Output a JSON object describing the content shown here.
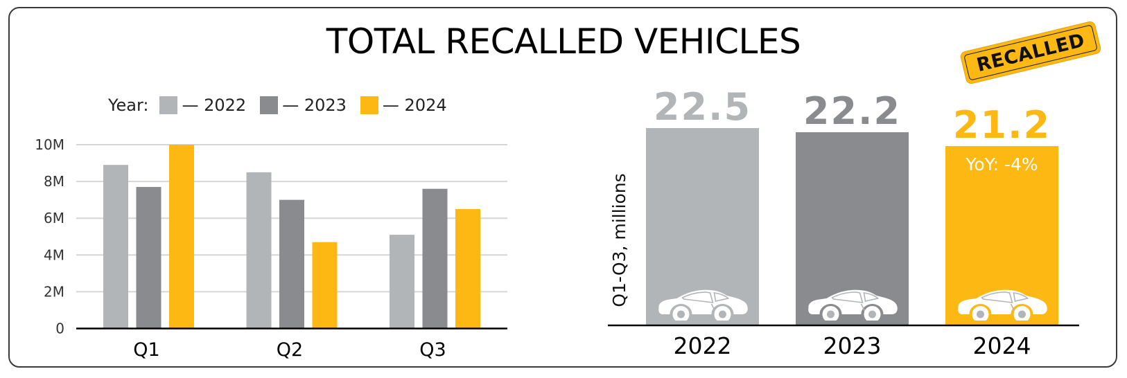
{
  "title": "TOTAL RECALLED VEHICLES",
  "stamp_text": "RECALLED",
  "colors": {
    "y2022": "#B2B5B8",
    "y2023": "#8A8B8E",
    "y2024": "#FDB813",
    "grid": "#D6D6D6",
    "axis": "#000000",
    "car": "#FFFFFF"
  },
  "legend": {
    "label": "Year:",
    "items": [
      {
        "text": "— 2022",
        "color_key": "y2022"
      },
      {
        "text": "— 2023",
        "color_key": "y2023"
      },
      {
        "text": "— 2024",
        "color_key": "y2024"
      }
    ]
  },
  "icons": [
    "car-icon"
  ],
  "chart_data": [
    {
      "type": "bar",
      "title": "",
      "xlabel": "",
      "ylabel": "",
      "categories": [
        "Q1",
        "Q2",
        "Q3"
      ],
      "series": [
        {
          "name": "2022",
          "values": [
            8.9,
            8.5,
            5.1
          ]
        },
        {
          "name": "2023",
          "values": [
            7.7,
            7.0,
            7.6
          ]
        },
        {
          "name": "2024",
          "values": [
            10.0,
            4.7,
            6.5
          ]
        }
      ],
      "ylim": [
        0,
        10
      ],
      "yticks": [
        0,
        2,
        4,
        6,
        8,
        10
      ],
      "ytick_labels": [
        "0",
        "2M",
        "4M",
        "6M",
        "8M",
        "10M"
      ],
      "grid": true,
      "legend_position": "top"
    },
    {
      "type": "bar",
      "title": "",
      "xlabel": "",
      "ylabel": "Q1-Q3, millions",
      "categories": [
        "2022",
        "2023",
        "2024"
      ],
      "values": [
        22.5,
        22.2,
        21.2
      ],
      "data_labels": [
        "22.5",
        "22.2",
        "21.2"
      ],
      "annotations": [
        {
          "category": "2024",
          "text": "YoY: -4%"
        }
      ],
      "grid": false
    }
  ]
}
